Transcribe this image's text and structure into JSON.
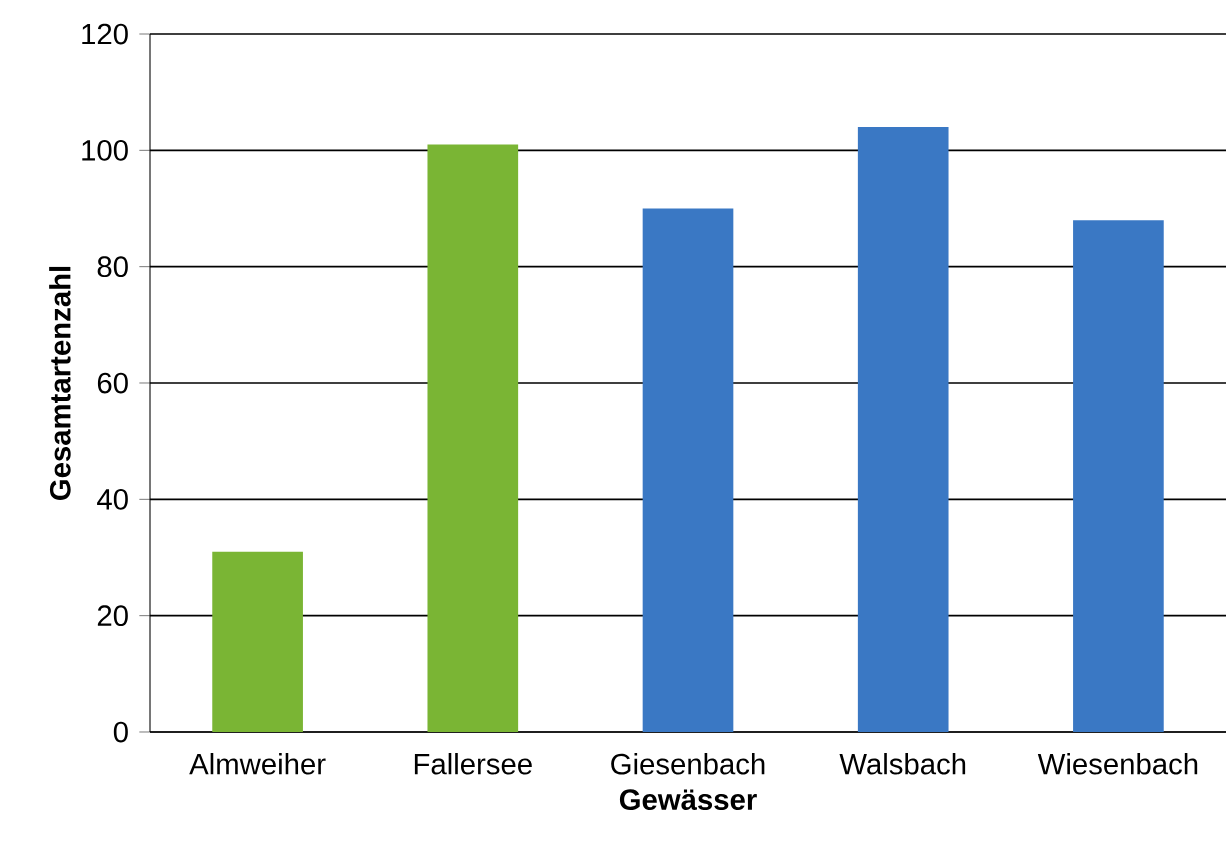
{
  "chart_data": {
    "type": "bar",
    "xlabel": "Gewässer",
    "ylabel": "Gesamtartenzahl",
    "categories": [
      "Almweiher",
      "Fallersee",
      "Giesenbach",
      "Walsbach",
      "Wiesenbach"
    ],
    "values": [
      31,
      101,
      90,
      104,
      88
    ],
    "colors": [
      "#7ab534",
      "#7ab534",
      "#3a78c4",
      "#3a78c4",
      "#3a78c4"
    ],
    "ylim": [
      0,
      120
    ],
    "yticks": [
      0,
      20,
      40,
      60,
      80,
      100,
      120
    ],
    "grid": "y"
  }
}
